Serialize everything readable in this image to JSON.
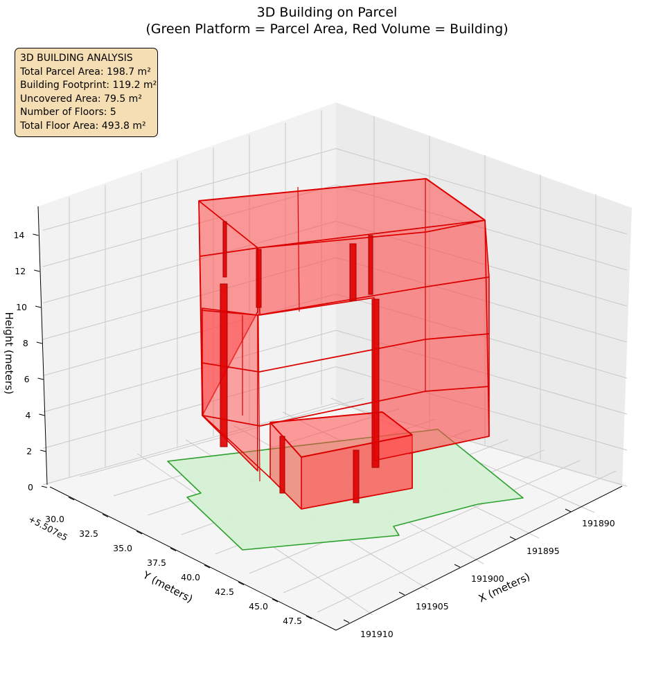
{
  "title": {
    "line1": "3D Building on Parcel",
    "line2": "(Green Platform = Parcel Area, Red Volume = Building)"
  },
  "info_box": {
    "heading": "3D BUILDING ANALYSIS",
    "lines": [
      "Total Parcel Area: 198.7 m²",
      "Building Footprint: 119.2 m²",
      "Uncovered Area: 79.5 m²",
      "Number of Floors: 5",
      "Total Floor Area: 493.8 m²"
    ]
  },
  "chart_data": {
    "type": "3d-polygon",
    "xlabel": "X (meters)",
    "ylabel": "Y (meters)",
    "zlabel": "Height (meters)",
    "y_offset_label": "+5.507e5",
    "x_ticks": [
      "191890",
      "191895",
      "191900",
      "191905",
      "191910"
    ],
    "y_ticks": [
      "30.0",
      "32.5",
      "35.0",
      "37.5",
      "40.0",
      "42.5",
      "45.0",
      "47.5"
    ],
    "z_ticks": [
      "0",
      "2",
      "4",
      "6",
      "8",
      "10",
      "12",
      "14"
    ],
    "series": [
      {
        "name": "Parcel Area",
        "fill": "#d4f0d4",
        "edge": "#2ca02c",
        "height": 0
      },
      {
        "name": "Building",
        "fill": "#ff4d4d",
        "edge": "#dd0000",
        "floors": 5,
        "floor_height": 3
      }
    ],
    "grid": true
  }
}
